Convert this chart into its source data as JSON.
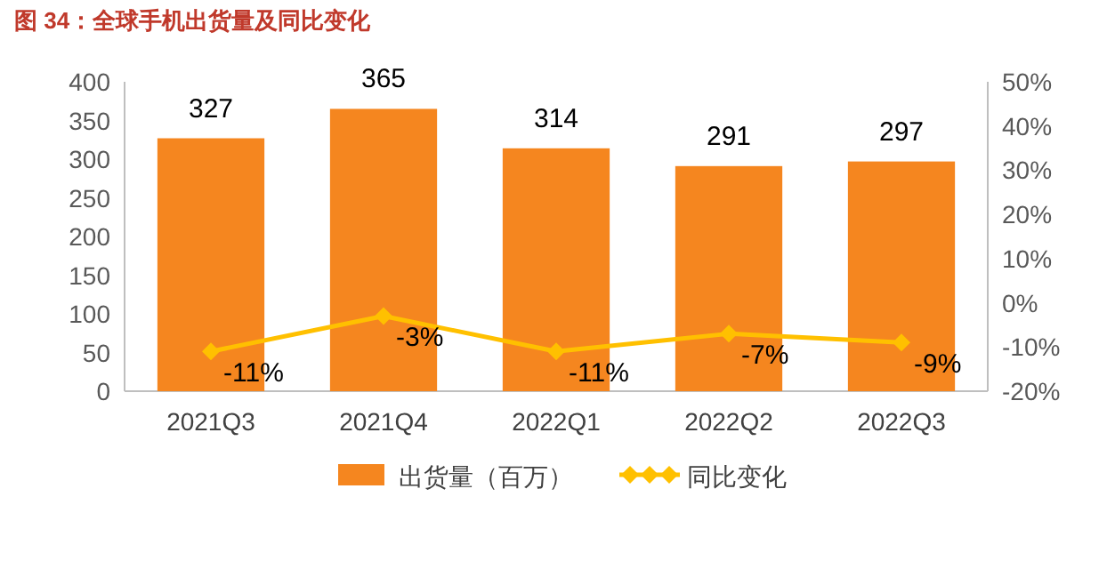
{
  "chart_data": {
    "type": "bar",
    "title": "图 34：全球手机出货量及同比变化",
    "categories": [
      "2021Q3",
      "2021Q4",
      "2022Q1",
      "2022Q2",
      "2022Q3"
    ],
    "series": [
      {
        "name": "出货量（百万）",
        "color": "#f5861f",
        "values": [
          327,
          365,
          314,
          291,
          297
        ],
        "value_labels": [
          "327",
          "365",
          "314",
          "291",
          "297"
        ]
      },
      {
        "name": "同比变化",
        "type": "line",
        "axis": "y2",
        "color": "#ffc000",
        "marker": "diamond",
        "values": [
          -11,
          -3,
          -11,
          -7,
          -9
        ],
        "value_labels": [
          "-11%",
          "-3%",
          "-11%",
          "-7%",
          "-9%"
        ]
      }
    ],
    "ylim": [
      0,
      400
    ],
    "yticks": [
      0,
      50,
      100,
      150,
      200,
      250,
      300,
      350,
      400
    ],
    "y2lim": [
      -20,
      50
    ],
    "y2ticks": [
      {
        "value": -20,
        "label": "-20%"
      },
      {
        "value": -10,
        "label": "-10%"
      },
      {
        "value": 0,
        "label": "0%"
      },
      {
        "value": 10,
        "label": "10%"
      },
      {
        "value": 20,
        "label": "20%"
      },
      {
        "value": 30,
        "label": "30%"
      },
      {
        "value": 40,
        "label": "40%"
      },
      {
        "value": 50,
        "label": "50%"
      }
    ],
    "grid": false,
    "legend": "bottom"
  }
}
